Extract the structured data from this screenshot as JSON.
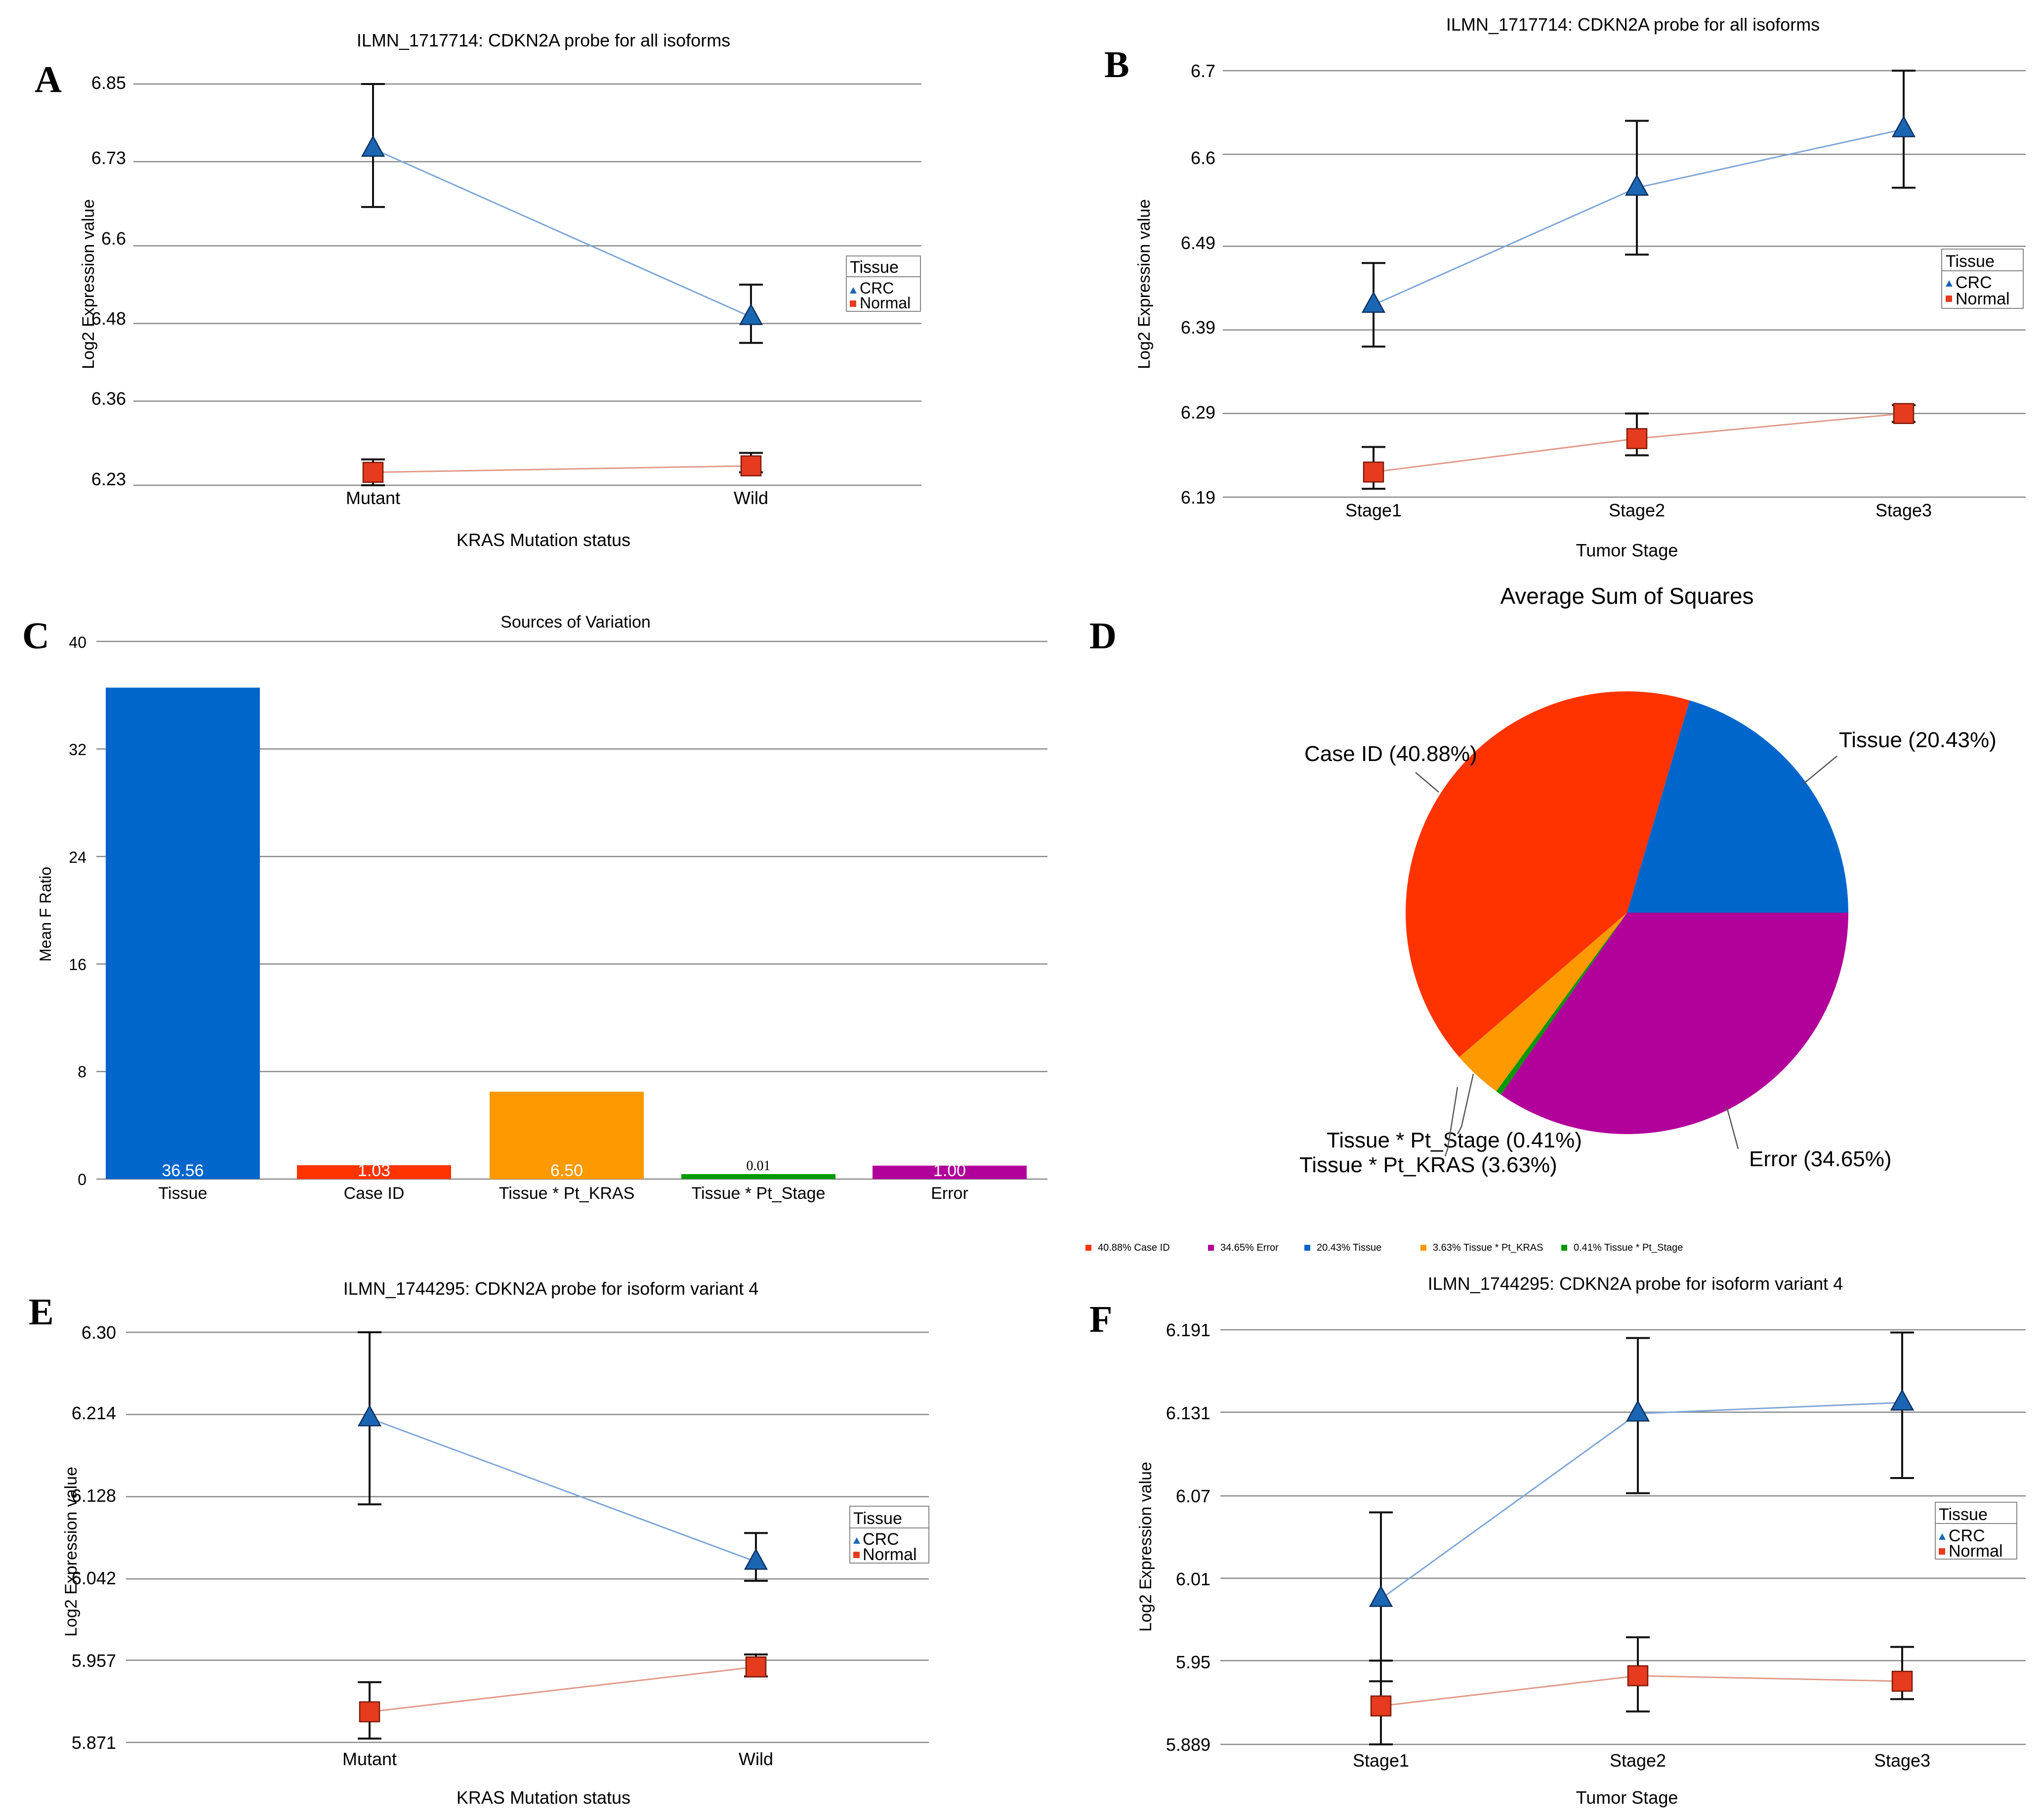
{
  "chart_data": [
    {
      "panel": "A",
      "type": "line",
      "title": "ILMN_1717714: CDKN2A probe for all isoforms",
      "xlabel": "KRAS Mutation status",
      "ylabel": "Log2 Expression value",
      "categories": [
        "Mutant",
        "Wild"
      ],
      "yticks": [
        "6.23",
        "6.36",
        "6.48",
        "6.6",
        "6.73",
        "6.85"
      ],
      "ylim": [
        6.23,
        6.85
      ],
      "legend": {
        "title": "Tissue",
        "position": "right"
      },
      "series": [
        {
          "name": "CRC",
          "values": [
            6.75,
            6.49
          ],
          "err_low": [
            6.66,
            6.45
          ],
          "err_high": [
            6.85,
            6.54
          ]
        },
        {
          "name": "Normal",
          "values": [
            6.25,
            6.26
          ],
          "err_low": [
            6.23,
            6.25
          ],
          "err_high": [
            6.27,
            6.28
          ]
        }
      ]
    },
    {
      "panel": "B",
      "type": "line",
      "title": "ILMN_1717714: CDKN2A probe for all isoforms",
      "xlabel": "Tumor Stage",
      "ylabel": "Log2 Expression value",
      "categories": [
        "Stage1",
        "Stage2",
        "Stage3"
      ],
      "yticks": [
        "6.19",
        "6.29",
        "6.39",
        "6.49",
        "6.6",
        "6.7"
      ],
      "ylim": [
        6.19,
        6.7
      ],
      "legend": {
        "title": "Tissue",
        "position": "right"
      },
      "series": [
        {
          "name": "CRC",
          "values": [
            6.42,
            6.56,
            6.63
          ],
          "err_low": [
            6.37,
            6.48,
            6.56
          ],
          "err_high": [
            6.47,
            6.64,
            6.7
          ]
        },
        {
          "name": "Normal",
          "values": [
            6.22,
            6.26,
            6.29
          ],
          "err_low": [
            6.2,
            6.24,
            6.28
          ],
          "err_high": [
            6.25,
            6.29,
            6.3
          ]
        }
      ]
    },
    {
      "panel": "C",
      "type": "bar",
      "title": "Sources of Variation",
      "ylabel": "Mean F Ratio",
      "categories": [
        "Tissue",
        "Case ID",
        "Tissue * Pt_KRAS",
        "Tissue * Pt_Stage",
        "Error"
      ],
      "values": [
        36.56,
        1.03,
        6.5,
        0.01,
        1.0
      ],
      "value_labels": [
        "36.56",
        "1.03",
        "6.50",
        "0.01",
        "1.00"
      ],
      "yticks": [
        "0",
        "8",
        "16",
        "24",
        "32",
        "40"
      ],
      "ylim": [
        0,
        40
      ],
      "colors": [
        "#0066cc",
        "#ff3300",
        "#ff9900",
        "#009900",
        "#b2009a"
      ]
    },
    {
      "panel": "D",
      "type": "pie",
      "title": "Average Sum of Squares",
      "slices": [
        {
          "name": "Tissue",
          "value": 20.43,
          "label": "Tissue  (20.43%)",
          "legend": "20.43% Tissue",
          "color": "#0066cc"
        },
        {
          "name": "Error",
          "value": 34.65,
          "label": "Error  (34.65%)",
          "legend": "34.65% Error",
          "color": "#b2009a"
        },
        {
          "name": "Tissue * Pt_Stage",
          "value": 0.41,
          "label": "Tissue * Pt_Stage  (0.41%)",
          "legend": "0.41% Tissue * Pt_Stage",
          "color": "#009900"
        },
        {
          "name": "Tissue * Pt_KRAS",
          "value": 3.63,
          "label": "Tissue * Pt_KRAS  (3.63%)",
          "legend": "3.63% Tissue * Pt_KRAS",
          "color": "#ff9900"
        },
        {
          "name": "Case ID",
          "value": 40.88,
          "label": "Case ID  (40.88%)",
          "legend": "40.88% Case ID",
          "color": "#ff3300"
        }
      ],
      "legend_order": [
        4,
        1,
        0,
        3,
        2
      ]
    },
    {
      "panel": "E",
      "type": "line",
      "title": "ILMN_1744295: CDKN2A probe for isoform variant 4",
      "xlabel": "KRAS Mutation status",
      "ylabel": "Log2 Expression value",
      "categories": [
        "Mutant",
        "Wild"
      ],
      "yticks": [
        "5.871",
        "5.957",
        "6.042",
        "6.128",
        "6.214",
        "6.30"
      ],
      "ylim": [
        5.871,
        6.3
      ],
      "legend": {
        "title": "Tissue",
        "position": "right"
      },
      "series": [
        {
          "name": "CRC",
          "values": [
            6.21,
            6.06
          ],
          "err_low": [
            6.12,
            6.04
          ],
          "err_high": [
            6.3,
            6.09
          ]
        },
        {
          "name": "Normal",
          "values": [
            5.903,
            5.95
          ],
          "err_low": [
            5.875,
            5.94
          ],
          "err_high": [
            5.934,
            5.963
          ]
        }
      ]
    },
    {
      "panel": "F",
      "type": "line",
      "title": "ILMN_1744295: CDKN2A probe for isoform variant 4",
      "xlabel": "Tumor Stage",
      "ylabel": "Log2 Expression value",
      "categories": [
        "Stage1",
        "Stage2",
        "Stage3"
      ],
      "yticks": [
        "5.889",
        "5.95",
        "6.01",
        "6.07",
        "6.131",
        "6.191"
      ],
      "ylim": [
        5.889,
        6.191
      ],
      "legend": {
        "title": "Tissue",
        "position": "right"
      },
      "series": [
        {
          "name": "CRC",
          "values": [
            5.995,
            6.13,
            6.138
          ],
          "err_low": [
            5.935,
            6.072,
            6.083
          ],
          "err_high": [
            6.058,
            6.185,
            6.189
          ]
        },
        {
          "name": "Normal",
          "values": [
            5.917,
            5.939,
            5.935
          ],
          "err_low": [
            5.889,
            5.913,
            5.922
          ],
          "err_high": [
            5.95,
            5.967,
            5.96
          ]
        }
      ]
    }
  ]
}
